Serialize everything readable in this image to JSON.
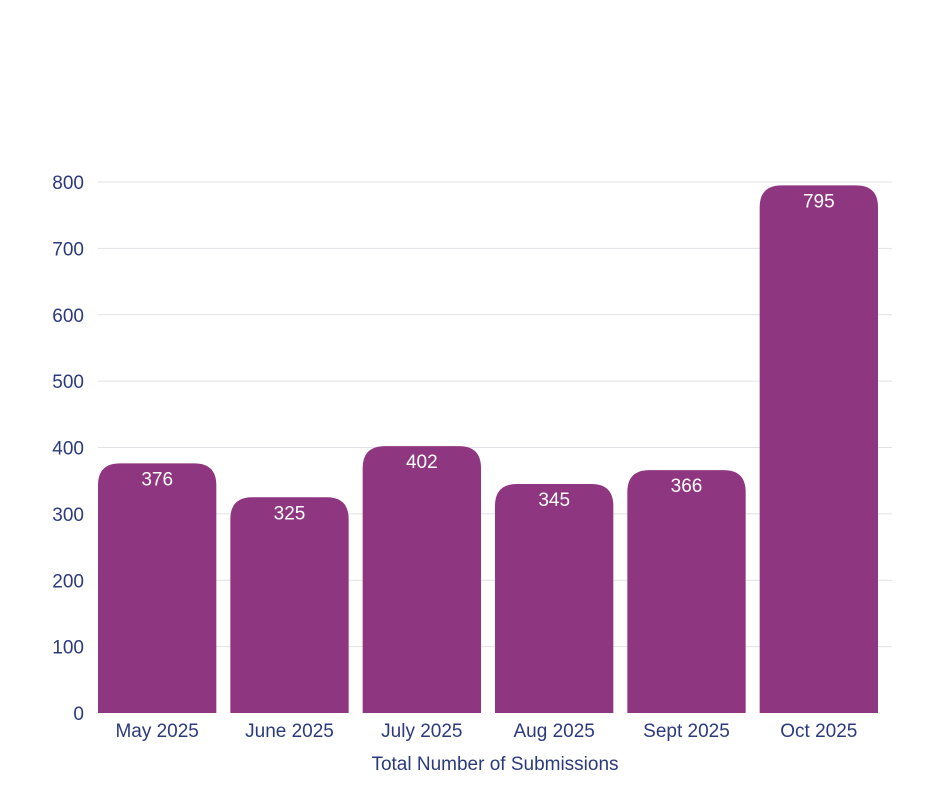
{
  "chart_data": {
    "type": "bar",
    "title": "",
    "xlabel": "Total Number of Submissions",
    "ylabel": "",
    "categories": [
      "May 2025",
      "June 2025",
      "July 2025",
      "Aug 2025",
      "Sept 2025",
      "Oct 2025"
    ],
    "values": [
      376,
      325,
      402,
      345,
      366,
      795
    ],
    "value_labels": [
      "376",
      "325",
      "402",
      "345",
      "366",
      "795"
    ],
    "ylim": [
      0,
      800
    ],
    "yticks": [
      0,
      100,
      200,
      300,
      400,
      500,
      600,
      700,
      800
    ],
    "ytick_labels": [
      "0",
      "100",
      "200",
      "300",
      "400",
      "500",
      "600",
      "700",
      "800"
    ],
    "grid": true,
    "legend": "none",
    "colors": {
      "bar": "#8e3680",
      "text": "#2b3a7d",
      "grid": "#e1e1e6",
      "bar_label": "#ffffff"
    }
  }
}
